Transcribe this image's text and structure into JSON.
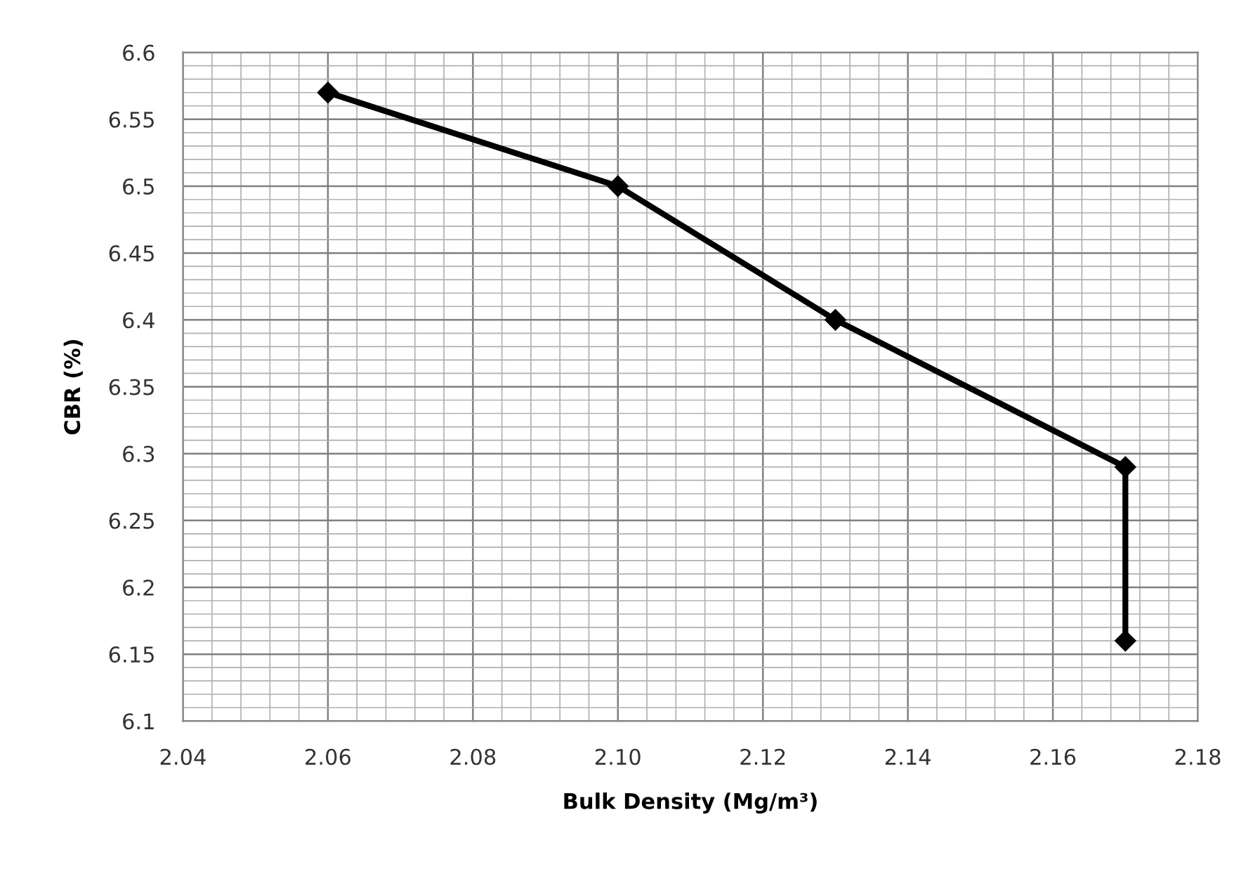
{
  "chart_data": {
    "type": "line",
    "xlabel": "Bulk Density (Mg/m³)",
    "ylabel": "CBR (%)",
    "series": [
      {
        "color": "#000000",
        "x": [
          2.06,
          2.1,
          2.13,
          2.17,
          2.17
        ],
        "values": [
          6.57,
          6.5,
          6.4,
          6.29,
          6.16
        ]
      }
    ],
    "xlim": [
      2.04,
      2.18
    ],
    "xticks": [
      2.04,
      2.06,
      2.08,
      {
        "value": 2.1,
        "label": "2.10"
      },
      2.12,
      2.14,
      2.16,
      2.18
    ],
    "ylim": [
      6.1,
      6.6
    ],
    "yticks": [
      6.1,
      6.15,
      6.2,
      6.25,
      6.3,
      6.35,
      6.4,
      6.45,
      6.5,
      6.55,
      6.6
    ],
    "grid": true,
    "marker": "diamond",
    "line_style": "solid"
  }
}
